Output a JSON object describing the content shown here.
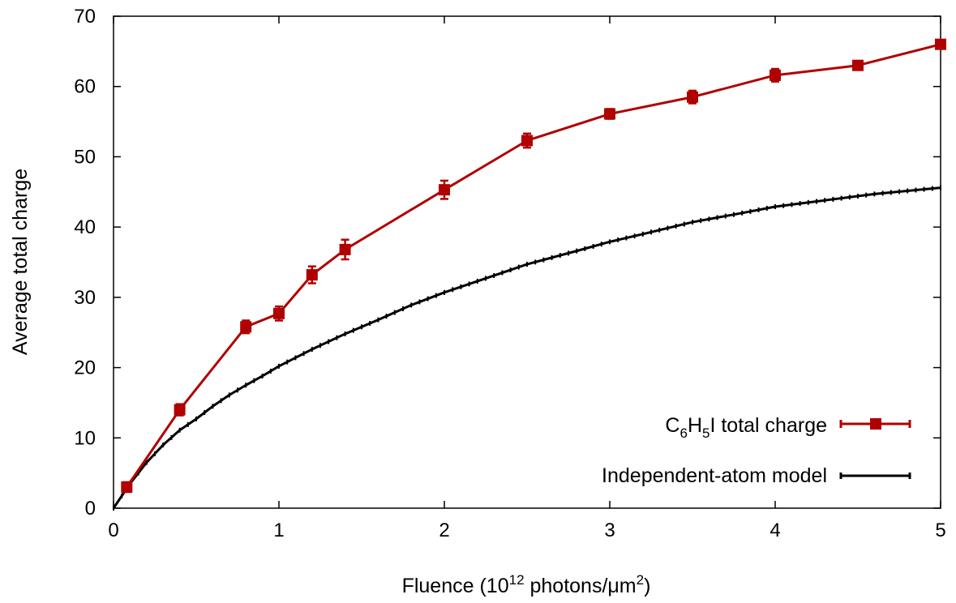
{
  "chart_data": {
    "type": "line",
    "xlabel": {
      "pre": "Fluence (10",
      "sup": "12",
      "post": " photons/μm",
      "sup2": "2",
      "post2": ")"
    },
    "ylabel": "Average total charge",
    "xlim": [
      0,
      5
    ],
    "ylim": [
      0,
      70
    ],
    "xticks": [
      "0",
      "1",
      "2",
      "3",
      "4",
      "5"
    ],
    "yticks": [
      "0",
      "10",
      "20",
      "30",
      "40",
      "50",
      "60",
      "70"
    ],
    "grid": false,
    "legend_position": "bottom-right",
    "series": [
      {
        "legend": {
          "base": "C",
          "sub1": "6",
          "mid": "H",
          "sub2": "5",
          "post": "I total charge"
        },
        "color": "#b00000",
        "marker": "square",
        "error_bars": true,
        "x": [
          0.08,
          0.4,
          0.8,
          1.0,
          1.2,
          1.4,
          2.0,
          2.5,
          3.0,
          3.5,
          4.0,
          4.5,
          5.0
        ],
        "y": [
          3.0,
          14.0,
          25.8,
          27.7,
          33.2,
          36.8,
          45.3,
          52.3,
          56.1,
          58.5,
          61.6,
          63.0,
          66.0
        ],
        "err": [
          0.7,
          0.8,
          0.9,
          1.0,
          1.2,
          1.4,
          1.3,
          1.0,
          0.7,
          0.9,
          0.9,
          0.5,
          0.5
        ]
      },
      {
        "legend": {
          "text": "Independent-atom model"
        },
        "color": "#000000",
        "marker": "none",
        "x": [
          0,
          0.1,
          0.2,
          0.3,
          0.4,
          0.5,
          0.6,
          0.7,
          0.8,
          0.9,
          1.0,
          1.2,
          1.4,
          1.6,
          1.8,
          2.0,
          2.2,
          2.5,
          2.8,
          3.0,
          3.2,
          3.5,
          3.8,
          4.0,
          4.3,
          4.6,
          5.0
        ],
        "y": [
          0,
          3.5,
          6.5,
          9.0,
          11.1,
          12.7,
          14.5,
          16.1,
          17.5,
          18.8,
          20.2,
          22.6,
          24.8,
          26.8,
          28.9,
          30.7,
          32.3,
          34.7,
          36.6,
          37.9,
          39.0,
          40.7,
          42.0,
          42.9,
          43.8,
          44.7,
          45.6
        ]
      }
    ]
  }
}
